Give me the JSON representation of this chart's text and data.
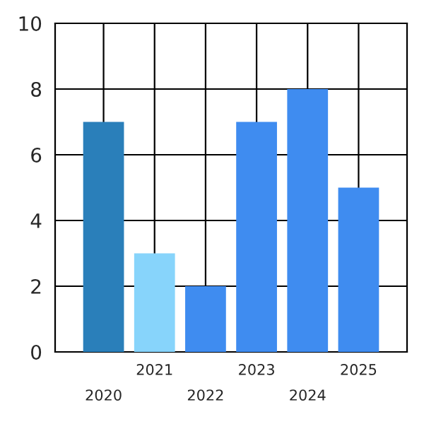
{
  "chart_data": {
    "type": "bar",
    "categories": [
      "2020",
      "2021",
      "2022",
      "2023",
      "2024",
      "2025"
    ],
    "values": [
      7,
      3,
      2,
      7,
      8,
      5
    ],
    "colors": [
      "#2a7fba",
      "#87d4fb",
      "#3f8cf0",
      "#3f8cf0",
      "#3f8cf0",
      "#3f8cf0"
    ],
    "ylim": [
      0,
      10
    ],
    "yticks": [
      0,
      2,
      4,
      6,
      8,
      10
    ],
    "grid": true
  }
}
